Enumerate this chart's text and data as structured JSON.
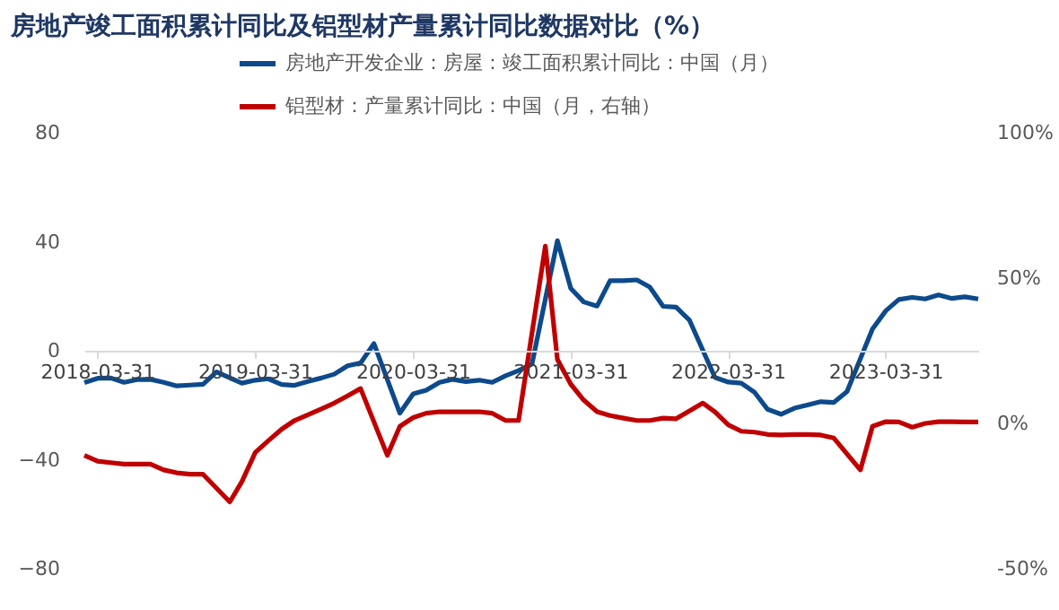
{
  "chart_data": {
    "type": "line",
    "title": "房地产竣工面积累计同比及铝型材产量累计同比数据对比（%）",
    "xlim": [
      "2018-03",
      "2023-11"
    ],
    "xticks": [
      "2018-03-31",
      "2019-03-31",
      "2020-03-31",
      "2021-03-31",
      "2022-03-31",
      "2023-03-31"
    ],
    "ylim": [
      -80,
      80
    ],
    "yticks": [
      -80,
      -40,
      0,
      40,
      80
    ],
    "y2lim": [
      -50,
      100
    ],
    "y2ticks": [
      {
        "value": -50,
        "label": "-50%"
      },
      {
        "value": 0,
        "label": "0%"
      },
      {
        "value": 50,
        "label": "50%"
      },
      {
        "value": 100,
        "label": "100%"
      }
    ],
    "grid": false,
    "legend": "top",
    "series": [
      {
        "name": "房地产开发企业：房屋：竣工面积累计同比：中国（月）",
        "color": "#0d4a8c",
        "x": [
          "2018-03",
          "2018-04",
          "2018-05",
          "2018-06",
          "2018-07",
          "2018-08",
          "2018-09",
          "2018-10",
          "2018-11",
          "2018-12",
          "2019-01",
          "2019-03",
          "2019-04",
          "2019-05",
          "2019-06",
          "2019-07",
          "2019-08",
          "2019-09",
          "2019-10",
          "2019-11",
          "2019-12",
          "2020-01",
          "2020-03",
          "2020-04",
          "2020-05",
          "2020-06",
          "2020-07",
          "2020-08",
          "2020-09",
          "2020-10",
          "2020-11",
          "2020-12",
          "2021-01",
          "2021-03",
          "2021-04",
          "2021-05",
          "2021-06",
          "2021-07",
          "2021-08",
          "2021-09",
          "2021-10",
          "2021-11",
          "2021-12",
          "2022-01",
          "2022-03",
          "2022-04",
          "2022-05",
          "2022-06",
          "2022-07",
          "2022-08",
          "2022-09",
          "2022-10",
          "2022-11",
          "2022-12",
          "2023-01",
          "2023-03",
          "2023-04",
          "2023-05",
          "2023-06",
          "2023-07",
          "2023-08",
          "2023-09",
          "2023-10",
          "2023-11"
        ],
        "values": [
          -11.7,
          -10.1,
          -10.0,
          -11.6,
          -10.6,
          -10.5,
          -11.6,
          -12.9,
          -12.6,
          -12.3,
          -7.8,
          -11.9,
          -10.8,
          -10.3,
          -12.4,
          -12.7,
          -11.3,
          -10.0,
          -8.6,
          -5.5,
          -4.5,
          2.6,
          -22.9,
          -15.8,
          -14.5,
          -11.6,
          -10.5,
          -11.3,
          -10.8,
          -11.6,
          -9.2,
          -7.3,
          -4.9,
          40.4,
          22.9,
          17.9,
          16.4,
          25.7,
          25.7,
          26.0,
          23.4,
          16.3,
          16.0,
          11.2,
          -9.8,
          -11.5,
          -11.9,
          -15.3,
          -21.5,
          -23.3,
          -21.1,
          -19.9,
          -18.7,
          -19.0,
          -15.0,
          8.0,
          14.7,
          18.8,
          19.6,
          19.0,
          20.5,
          19.2,
          19.8,
          19.0
        ]
      },
      {
        "name": "铝型材：产量累计同比：中国（月，右轴）",
        "color": "#c00000",
        "axis": "y2",
        "x": [
          "2018-03",
          "2018-04",
          "2018-05",
          "2018-06",
          "2018-07",
          "2018-08",
          "2018-09",
          "2018-10",
          "2018-11",
          "2018-12",
          "2019-02",
          "2019-03",
          "2019-04",
          "2019-05",
          "2019-06",
          "2019-07",
          "2019-08",
          "2019-09",
          "2019-10",
          "2019-11",
          "2019-12",
          "2020-02",
          "2020-03",
          "2020-04",
          "2020-05",
          "2020-06",
          "2020-07",
          "2020-08",
          "2020-09",
          "2020-10",
          "2020-11",
          "2020-12",
          "2021-02",
          "2021-03",
          "2021-04",
          "2021-05",
          "2021-06",
          "2021-07",
          "2021-08",
          "2021-09",
          "2021-10",
          "2021-11",
          "2021-12",
          "2022-02",
          "2022-03",
          "2022-04",
          "2022-05",
          "2022-06",
          "2022-07",
          "2022-08",
          "2022-09",
          "2022-10",
          "2022-11",
          "2022-12",
          "2023-02",
          "2023-03",
          "2023-04",
          "2023-05",
          "2023-06",
          "2023-07",
          "2023-08",
          "2023-09",
          "2023-10",
          "2023-11"
        ],
        "values": [
          -11,
          -13,
          -13.5,
          -14,
          -14,
          -14,
          -16,
          -17,
          -17.5,
          -17.5,
          -27,
          -20,
          -10,
          -6,
          -2,
          1,
          3,
          5,
          7,
          9.5,
          12,
          -11,
          -1,
          2,
          3.5,
          4,
          4,
          4,
          4,
          3.5,
          1,
          1,
          61,
          22,
          13.5,
          8,
          4,
          2.7,
          1.8,
          1,
          1,
          1.8,
          1.6,
          7,
          4,
          -0.5,
          -2.7,
          -3,
          -3.8,
          -4,
          -3.8,
          -3.8,
          -4,
          -5,
          -16,
          -1,
          0.6,
          0.5,
          -1.3,
          0,
          0.6,
          0.6,
          0.5,
          0.5
        ]
      }
    ]
  }
}
